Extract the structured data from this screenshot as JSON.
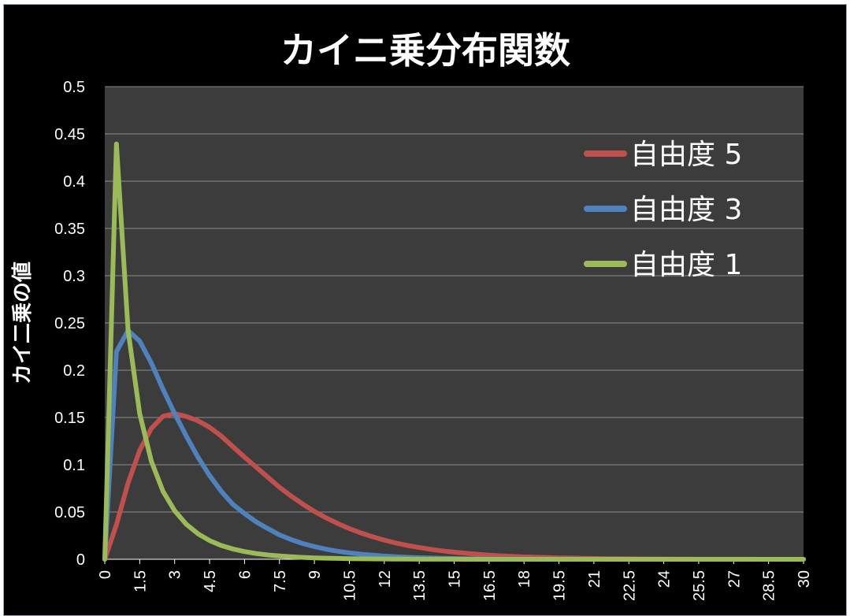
{
  "chart_data": {
    "type": "line",
    "title": "カイニ乗分布関数",
    "ylabel": "カイ二乗の値",
    "xlabel": "",
    "ylim": [
      0,
      0.5
    ],
    "xlim": [
      0,
      30
    ],
    "y_ticks": [
      "0",
      "0.05",
      "0.1",
      "0.15",
      "0.2",
      "0.25",
      "0.3",
      "0.35",
      "0.4",
      "0.45",
      "0.5"
    ],
    "x_ticks": [
      "0",
      "1.5",
      "3",
      "4.5",
      "6",
      "7.5",
      "9",
      "10.5",
      "12",
      "13.5",
      "15",
      "16.5",
      "18",
      "19.5",
      "21",
      "22.5",
      "24",
      "25.5",
      "27",
      "28.5",
      "30"
    ],
    "grid": true,
    "legend_position": "top-right",
    "x": [
      0,
      0.5,
      1,
      1.5,
      2,
      2.5,
      3,
      3.5,
      4,
      4.5,
      5,
      5.5,
      6,
      6.5,
      7,
      7.5,
      8,
      8.5,
      9,
      9.5,
      10,
      10.5,
      11,
      11.5,
      12,
      12.5,
      13,
      13.5,
      14,
      14.5,
      15,
      15.5,
      16,
      16.5,
      17,
      17.5,
      18,
      18.5,
      19,
      19.5,
      20,
      20.5,
      21,
      21.5,
      22,
      22.5,
      23,
      23.5,
      24,
      24.5,
      25,
      25.5,
      26,
      26.5,
      27,
      27.5,
      28,
      28.5,
      29,
      29.5,
      30
    ],
    "series": [
      {
        "name": "自由度 5",
        "color": "#c0504d",
        "values": [
          0,
          0.0366,
          0.0807,
          0.1152,
          0.1384,
          0.1513,
          0.1542,
          0.1511,
          0.1465,
          0.1397,
          0.1304,
          0.1192,
          0.108,
          0.0975,
          0.0868,
          0.0762,
          0.0669,
          0.0584,
          0.0507,
          0.0438,
          0.0378,
          0.0325,
          0.0278,
          0.0238,
          0.0203,
          0.0172,
          0.0146,
          0.0124,
          0.0105,
          0.0089,
          0.0075,
          0.0063,
          0.0053,
          0.0044,
          0.0037,
          0.0031,
          0.0026,
          0.0022,
          0.0018,
          0.0015,
          0.0013,
          0.0011,
          0.0009,
          0.0007,
          0.0006,
          0.0005,
          0.0004,
          0.0003,
          0.0003,
          0.0002,
          0.0002,
          0.0001,
          0.0001,
          0.0001,
          0.0001,
          0.0001,
          0,
          0,
          0,
          0,
          0
        ]
      },
      {
        "name": "自由度 3",
        "color": "#4f81bd",
        "values": [
          0,
          0.2197,
          0.242,
          0.2308,
          0.2076,
          0.1799,
          0.1542,
          0.1303,
          0.108,
          0.0886,
          0.072,
          0.0581,
          0.0484,
          0.0395,
          0.0325,
          0.0258,
          0.0208,
          0.0167,
          0.0134,
          0.0107,
          0.0085,
          0.0068,
          0.0054,
          0.0043,
          0.0034,
          0.0027,
          0.0021,
          0.0017,
          0.0013,
          0.001,
          0.0008,
          0.0006,
          0.0005,
          0.0004,
          0.0003,
          0.0002,
          0.0002,
          0.0001,
          0.0001,
          0.0001,
          0.0001,
          0,
          0,
          0,
          0,
          0,
          0,
          0,
          0,
          0,
          0,
          0,
          0,
          0,
          0,
          0,
          0,
          0,
          0,
          0,
          0
        ]
      },
      {
        "name": "自由度 1",
        "color": "#9bbb59",
        "values": [
          0,
          0.4394,
          0.242,
          0.1542,
          0.1038,
          0.0719,
          0.0514,
          0.037,
          0.027,
          0.0198,
          0.0146,
          0.0109,
          0.0082,
          0.0061,
          0.0046,
          0.0035,
          0.0027,
          0.002,
          0.0015,
          0.0012,
          0.0009,
          0.0007,
          0.0005,
          0.0004,
          0.0003,
          0.0002,
          0.0002,
          0.0001,
          0.0001,
          0.0001,
          0.0001,
          0,
          0,
          0,
          0,
          0,
          0,
          0,
          0,
          0,
          0,
          0,
          0,
          0,
          0,
          0,
          0,
          0,
          0,
          0,
          0,
          0,
          0,
          0,
          0,
          0,
          0,
          0,
          0,
          0,
          0
        ]
      }
    ]
  },
  "colors": {
    "plot_background": "#3c3c3c",
    "chart_background": "#000000",
    "gridline": "#8c8c8c"
  }
}
